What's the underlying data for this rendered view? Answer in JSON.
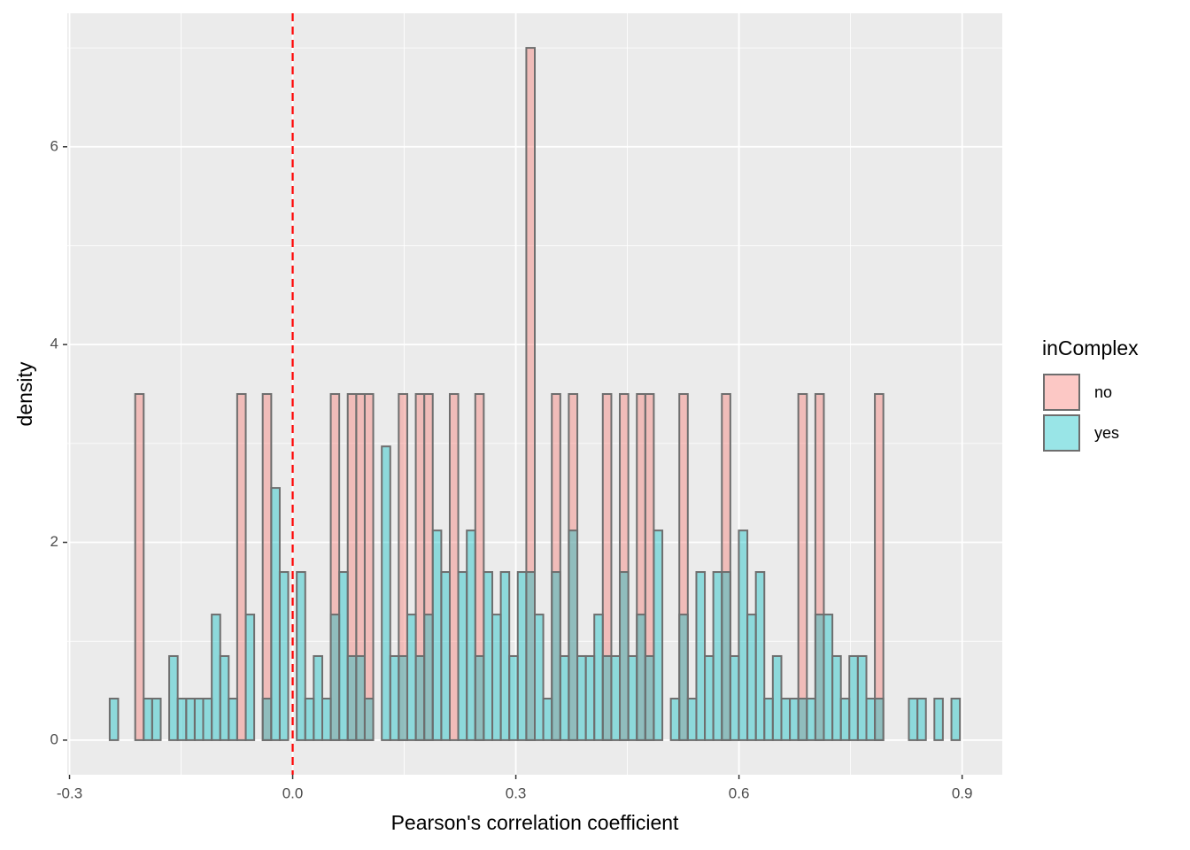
{
  "chart_data": {
    "type": "histogram",
    "x_label": "Pearson's correlation coefficient",
    "y_label": "density",
    "legend_title": "inComplex",
    "legend_position": "right",
    "grid": true,
    "alpha": 0.4,
    "outline_color": "#6e6e6e",
    "vline": {
      "x": 0,
      "color": "#ff0000",
      "dash": true
    },
    "xlim": [
      -0.303,
      0.954
    ],
    "ylim": [
      -0.35,
      7.35
    ],
    "xticks": [
      -0.3,
      {
        "value": 0,
        "label": "0.0"
      },
      0.3,
      0.6,
      0.9
    ],
    "yticks": [
      0,
      2,
      4,
      6
    ],
    "x_minor_grid": [
      -0.15,
      0.15,
      0.45,
      0.75
    ],
    "y_minor_grid": [
      1,
      3,
      5,
      7
    ],
    "bins": [
      -0.246,
      -0.2346,
      -0.2231,
      -0.2117,
      -0.2003,
      -0.1889,
      -0.1774,
      -0.166,
      -0.1546,
      -0.1431,
      -0.1317,
      -0.1203,
      -0.1088,
      -0.0974,
      -0.086,
      -0.0746,
      -0.0631,
      -0.0517,
      -0.0403,
      -0.0288,
      -0.0174,
      -0.006,
      0.0055,
      0.0169,
      0.0283,
      0.0398,
      0.0512,
      0.0626,
      0.074,
      0.0855,
      0.0969,
      0.1083,
      0.1198,
      0.1312,
      0.1426,
      0.1541,
      0.1655,
      0.1769,
      0.1883,
      0.1998,
      0.2112,
      0.2226,
      0.2341,
      0.2455,
      0.2569,
      0.2684,
      0.2798,
      0.2912,
      0.3026,
      0.3141,
      0.3255,
      0.3369,
      0.3484,
      0.3598,
      0.3712,
      0.3827,
      0.3941,
      0.4055,
      0.4169,
      0.4284,
      0.4398,
      0.4512,
      0.4627,
      0.4741,
      0.4855,
      0.497,
      0.5084,
      0.5198,
      0.5312,
      0.5427,
      0.5541,
      0.5655,
      0.577,
      0.5884,
      0.5998,
      0.6113,
      0.6227,
      0.6341,
      0.6455,
      0.657,
      0.6684,
      0.6798,
      0.6913,
      0.7027,
      0.7141,
      0.7256,
      0.737,
      0.7484,
      0.7598,
      0.7713,
      0.7827,
      0.7941,
      0.8056,
      0.817,
      0.8284,
      0.8399,
      0.8513,
      0.8627,
      0.8741,
      0.8856,
      0.897
    ],
    "series": [
      {
        "name": "no",
        "color": "#F8766D",
        "values": [
          0,
          0,
          0,
          3.5,
          0,
          0,
          0,
          0,
          0,
          0,
          0,
          0,
          0,
          0,
          0,
          3.5,
          0,
          0,
          3.5,
          0,
          0,
          0,
          0,
          0,
          0,
          0,
          3.5,
          0,
          3.5,
          3.5,
          3.5,
          0,
          0,
          0,
          3.5,
          0,
          3.5,
          3.5,
          0,
          0,
          3.5,
          0,
          0,
          3.5,
          0,
          0,
          0,
          0,
          0,
          7,
          0,
          0,
          3.5,
          0,
          3.5,
          0,
          0,
          0,
          3.5,
          0,
          3.5,
          0,
          3.5,
          3.5,
          0,
          0,
          0,
          3.5,
          0,
          0,
          0,
          0,
          3.5,
          0,
          0,
          0,
          0,
          0,
          0,
          0,
          0,
          3.5,
          0,
          3.5,
          0,
          0,
          0,
          0,
          0,
          0,
          3.5,
          0,
          0,
          0,
          0,
          0,
          0,
          0,
          0,
          0
        ]
      },
      {
        "name": "yes",
        "color": "#00BFC4",
        "values": [
          0.42,
          0,
          0,
          0,
          0.42,
          0.42,
          0,
          0.85,
          0.42,
          0.42,
          0.42,
          0.42,
          1.27,
          0.85,
          0.42,
          0,
          1.27,
          0,
          0.42,
          2.55,
          1.7,
          0,
          1.7,
          0.42,
          0.85,
          0.42,
          1.27,
          1.7,
          0.85,
          0.85,
          0.42,
          0,
          2.97,
          0.85,
          0.85,
          1.27,
          0.85,
          1.27,
          2.12,
          1.7,
          0,
          1.7,
          2.12,
          0.85,
          1.7,
          1.27,
          1.7,
          0.85,
          1.7,
          1.7,
          1.27,
          0.42,
          1.7,
          0.85,
          2.12,
          0.85,
          0.85,
          1.27,
          0.85,
          0.85,
          1.7,
          0.85,
          1.27,
          0.85,
          2.12,
          0,
          0.42,
          1.27,
          0.42,
          1.7,
          0.85,
          1.7,
          1.7,
          0.85,
          2.12,
          1.27,
          1.7,
          0.42,
          0.85,
          0.42,
          0.42,
          0.42,
          0.42,
          1.27,
          1.27,
          0.85,
          0.42,
          0.85,
          0.85,
          0.42,
          0.42,
          0,
          0,
          0,
          0.42,
          0.42,
          0,
          0.42,
          0,
          0.42
        ]
      }
    ]
  }
}
